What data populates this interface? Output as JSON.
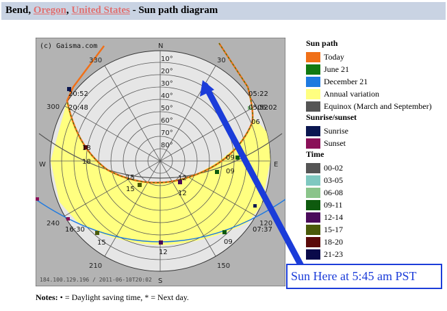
{
  "header": {
    "city": "Bend",
    "region": "Oregon",
    "country": "United States",
    "suffix": "- Sun path diagram",
    "comma": ","
  },
  "diagram": {
    "copyright": "(c) Gaisma.com",
    "footer": "184.100.129.196 / 2011-06-10T20:02",
    "directions": {
      "n": "N",
      "s": "S",
      "e": "E",
      "w": "W"
    },
    "altitudes": [
      "10°",
      "20°",
      "30°",
      "40°",
      "50°",
      "60°",
      "70°",
      "80°"
    ],
    "azimuths": {
      "a330": "330",
      "a30": "30",
      "a300": "300",
      "a240": "240",
      "a210": "210",
      "a150": "150",
      "a120": "120"
    },
    "times": {
      "sunrise_today": "05:22",
      "sunrise_dec": "05:52",
      "sunrise_jun": "06:02",
      "sunset_today": "20:52",
      "sunset_jun": "20:48",
      "sunset_dec": "16:30",
      "sunrise_winter": "07:37"
    },
    "hours": {
      "h06": "06",
      "h09": "09",
      "h12": "12",
      "h15": "15",
      "h18": "18"
    }
  },
  "legend": {
    "sun_path_title": "Sun path",
    "sun_path": [
      {
        "label": "Today",
        "color": "#f07018"
      },
      {
        "label": "June 21",
        "color": "#117a11"
      },
      {
        "label": "December 21",
        "color": "#1f7ae0"
      },
      {
        "label": "Annual variation",
        "color": "#ffff80"
      },
      {
        "label": "Equinox (March and September)",
        "color": "#555555"
      }
    ],
    "sunrise_title": "Sunrise/sunset",
    "sunrise": [
      {
        "label": "Sunrise",
        "color": "#0a1650"
      },
      {
        "label": "Sunset",
        "color": "#8a1058"
      }
    ],
    "time_title": "Time",
    "time": [
      {
        "label": "00-02",
        "color": "#555555"
      },
      {
        "label": "03-05",
        "color": "#7fc8c0"
      },
      {
        "label": "06-08",
        "color": "#8ac48a"
      },
      {
        "label": "09-11",
        "color": "#0e5a0e"
      },
      {
        "label": "12-14",
        "color": "#4a0a5a"
      },
      {
        "label": "15-17",
        "color": "#4a5a0a"
      },
      {
        "label": "18-20",
        "color": "#5a0a0a"
      },
      {
        "label": "21-23",
        "color": "#0a0a4a"
      }
    ]
  },
  "callout": {
    "text": "Sun Here at 5:45 am PST"
  },
  "notes": {
    "label": "Notes:",
    "text": " • = Daylight saving time, * = Next day."
  }
}
